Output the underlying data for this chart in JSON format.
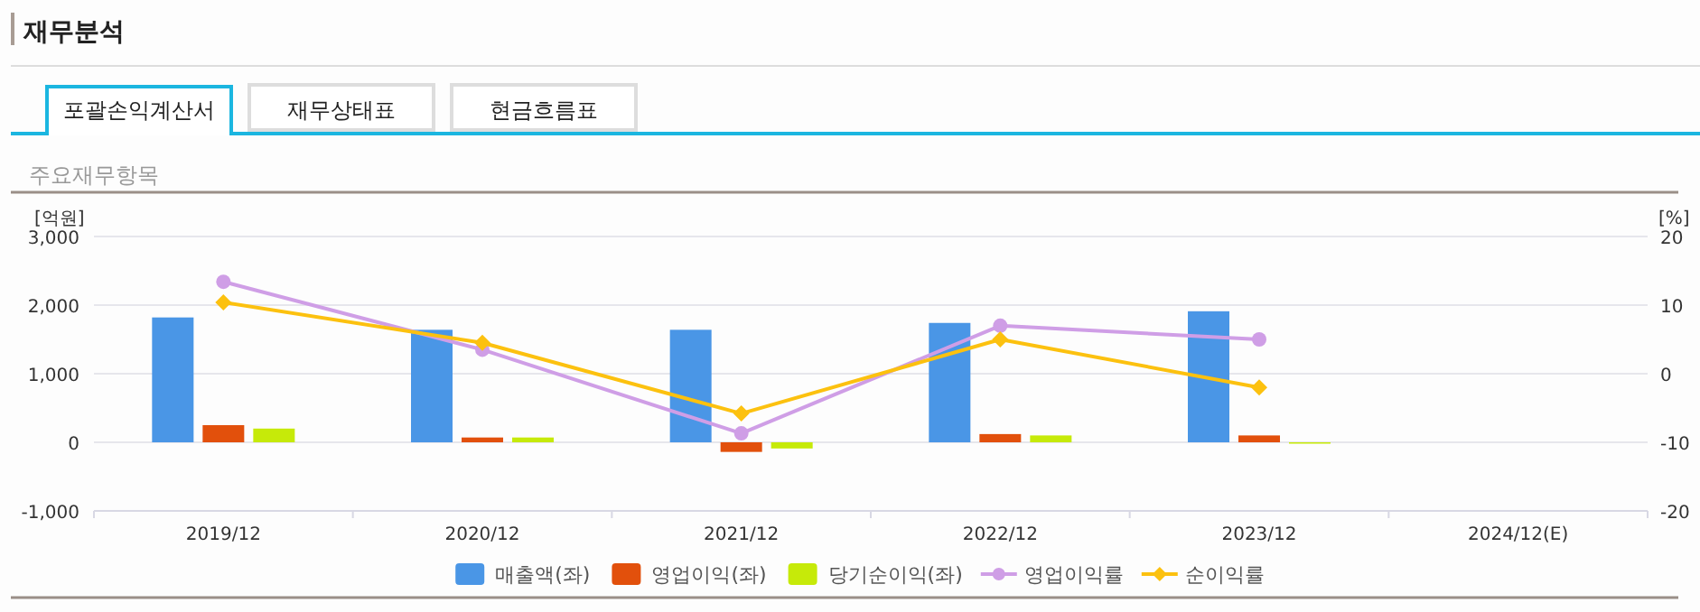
{
  "chart_data": {
    "type": "bar",
    "title": "재무분석",
    "subtitle": "주요재무항목",
    "annotations": [
      "포괄손익계산서",
      "재무상태표",
      "현금흐름표"
    ],
    "ylabel": "[억원]",
    "y2label": "[%]",
    "categories": [
      "2019/12",
      "2020/12",
      "2021/12",
      "2022/12",
      "2023/12",
      "2024/12(E)"
    ],
    "series": [
      {
        "name": "매출액(좌)",
        "color": "#4a96e6",
        "values": [
          1820,
          1640,
          1640,
          1740,
          1910,
          null
        ]
      },
      {
        "name": "영업이익(좌)",
        "color": "#e2500c",
        "values": [
          250,
          70,
          -140,
          120,
          100,
          null
        ]
      },
      {
        "name": "당기순이익(좌)",
        "color": "#c6ea09",
        "values": [
          200,
          70,
          -90,
          100,
          -20,
          null
        ]
      },
      {
        "name": "영업이익률",
        "type": "line",
        "axis": "y2",
        "marker": "circle",
        "color": "#cf9ee6",
        "values": [
          13.4,
          3.5,
          -8.7,
          7.0,
          5.0,
          null
        ]
      },
      {
        "name": "순이익률",
        "type": "line",
        "axis": "y2",
        "marker": "diamond",
        "color": "#fcc10f",
        "values": [
          10.4,
          4.5,
          -5.8,
          5.0,
          -2.0,
          null
        ]
      }
    ],
    "ylim": [
      -1000,
      3000
    ],
    "yticks": [
      {
        "value": -1000,
        "label": "-1,000"
      },
      0,
      {
        "value": 1000,
        "label": "1,000"
      },
      {
        "value": 2000,
        "label": "2,000"
      },
      {
        "value": 3000,
        "label": "3,000"
      }
    ],
    "y2lim": [
      -20,
      20
    ],
    "y2ticks": [
      -20,
      -10,
      0,
      10,
      20
    ],
    "grid": "y",
    "legend": "bottom"
  }
}
